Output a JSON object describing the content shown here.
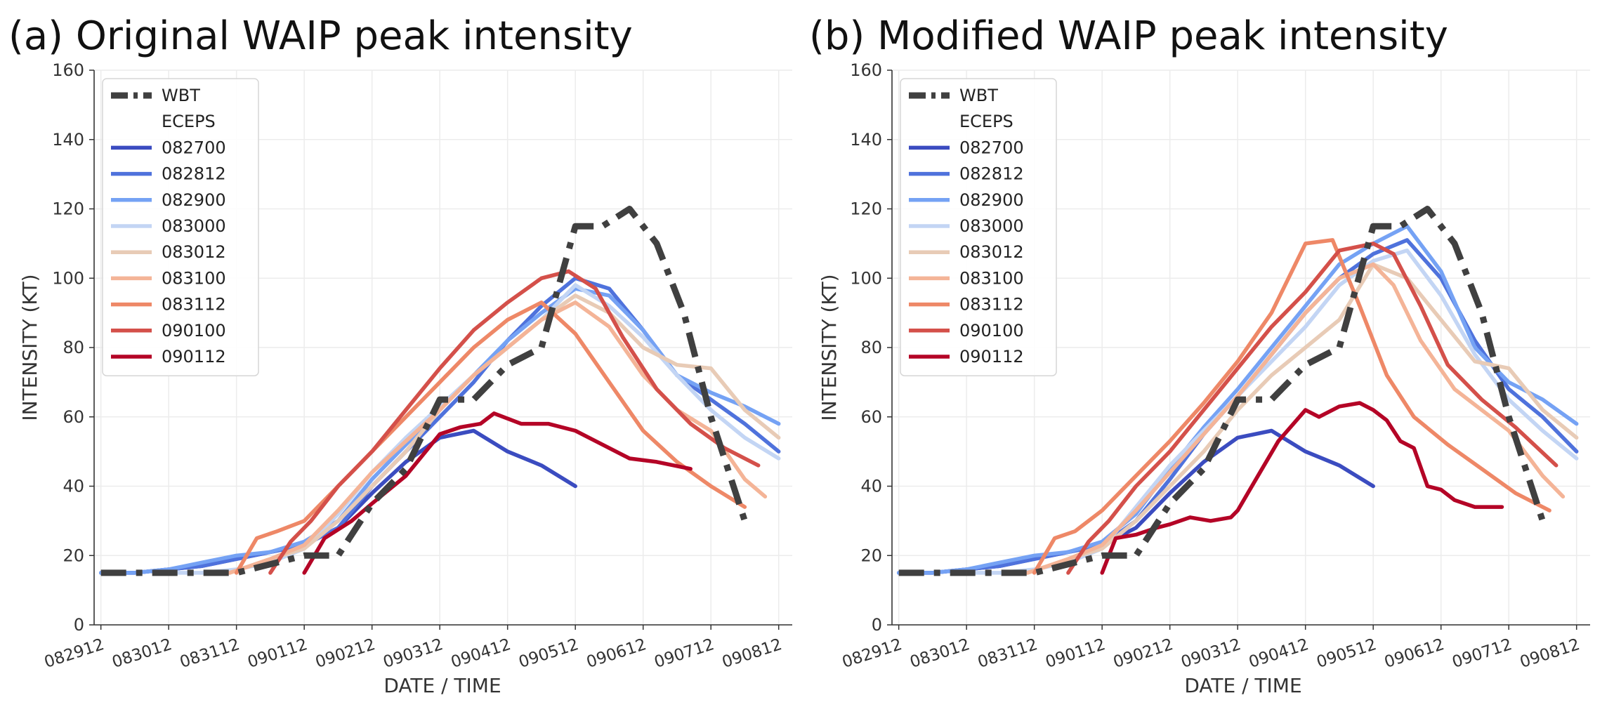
{
  "chart_data": [
    {
      "type": "line",
      "title": "(a) Original WAIP peak intensity",
      "xlabel": "DATE / TIME",
      "ylabel": "INTENSITY (KT)",
      "ylim": [
        0,
        160
      ],
      "yticks": [
        0,
        20,
        40,
        60,
        80,
        100,
        120,
        140,
        160
      ],
      "xlim": [
        -0.1,
        10.2
      ],
      "xticks": [
        "082912",
        "083012",
        "083112",
        "090112",
        "090212",
        "090312",
        "090412",
        "090512",
        "090612",
        "090712",
        "090812"
      ],
      "grid": true,
      "legend": {
        "location": "top-left",
        "header": "ECEPS"
      },
      "series": [
        {
          "name": "WBT",
          "color": "#404040",
          "style": "dashdot",
          "x": [
            0,
            1,
            1.5,
            2,
            3,
            3.5,
            4,
            4.5,
            5,
            5.5,
            6,
            6.5,
            7,
            7.4,
            7.8,
            8.2,
            8.6,
            9,
            9.5
          ],
          "y": [
            15,
            15,
            15,
            15,
            20,
            20,
            35,
            45,
            65,
            65,
            75,
            80,
            115,
            115,
            120,
            110,
            90,
            60,
            30
          ]
        },
        {
          "name": "082700",
          "color": "#3b4cc0",
          "x": [
            0,
            0.5,
            1,
            1.5,
            2,
            2.5,
            3,
            3.5,
            4,
            4.5,
            5,
            5.5,
            6,
            6.5,
            7
          ],
          "y": [
            15,
            15,
            16,
            17,
            19,
            21,
            23,
            28,
            38,
            47,
            54,
            56,
            50,
            46,
            40
          ]
        },
        {
          "name": "082812",
          "color": "#4f72dc",
          "x": [
            0,
            0.5,
            1,
            1.5,
            2,
            2.5,
            3,
            3.5,
            4,
            4.5,
            5,
            5.5,
            6,
            6.5,
            7,
            7.5,
            8,
            8.5,
            9,
            9.5,
            10
          ],
          "y": [
            15,
            15,
            16,
            17,
            19,
            21,
            23,
            28,
            40,
            50,
            60,
            70,
            82,
            92,
            100,
            97,
            85,
            72,
            65,
            58,
            50
          ]
        },
        {
          "name": "082900",
          "color": "#75a2f4",
          "x": [
            0,
            0.5,
            1,
            1.5,
            2,
            2.5,
            3,
            3.5,
            4,
            4.5,
            5,
            5.5,
            6,
            6.5,
            7,
            7.5,
            8,
            8.5,
            9,
            9.5,
            10
          ],
          "y": [
            15,
            15,
            16,
            18,
            20,
            21,
            24,
            30,
            42,
            52,
            62,
            72,
            82,
            90,
            97,
            95,
            85,
            72,
            67,
            63,
            58
          ]
        },
        {
          "name": "083000",
          "color": "#c3d5f4",
          "x": [
            0.9,
            1.5,
            2,
            2.5,
            3,
            3.5,
            4,
            4.5,
            5,
            5.5,
            6,
            6.5,
            7,
            7.5,
            8,
            8.5,
            9,
            9.5,
            10
          ],
          "y": [
            15,
            15,
            16,
            18,
            22,
            32,
            44,
            54,
            63,
            72,
            80,
            88,
            98,
            92,
            83,
            72,
            62,
            54,
            48
          ]
        },
        {
          "name": "083012",
          "color": "#e8cbb6",
          "x": [
            1.9,
            2.2,
            2.5,
            3,
            3.5,
            4,
            4.5,
            5,
            5.5,
            6,
            6.5,
            7,
            7.5,
            8,
            8.5,
            9,
            9.5,
            10
          ],
          "y": [
            15,
            17,
            19,
            22,
            30,
            40,
            50,
            62,
            72,
            80,
            88,
            95,
            90,
            80,
            75,
            74,
            62,
            54
          ]
        },
        {
          "name": "083100",
          "color": "#f4b497",
          "x": [
            1.9,
            2.2,
            2.5,
            3,
            3.5,
            4,
            4.5,
            5,
            5.5,
            6,
            6.5,
            7,
            7.5,
            8,
            8.5,
            9,
            9.5,
            9.8
          ],
          "y": [
            15,
            17,
            19,
            23,
            33,
            44,
            53,
            62,
            72,
            80,
            88,
            93,
            86,
            72,
            62,
            56,
            42,
            37
          ]
        },
        {
          "name": "083112",
          "color": "#ee8867",
          "x": [
            2,
            2.3,
            2.6,
            3,
            3.5,
            4,
            4.5,
            5,
            5.5,
            6,
            6.5,
            7,
            7.5,
            8,
            8.5,
            9,
            9.5
          ],
          "y": [
            15,
            25,
            27,
            30,
            40,
            50,
            60,
            70,
            80,
            88,
            93,
            84,
            70,
            56,
            47,
            40,
            34
          ]
        },
        {
          "name": "090100",
          "color": "#d4504a",
          "x": [
            2.5,
            2.8,
            3.1,
            3.5,
            4,
            4.5,
            5,
            5.5,
            6,
            6.5,
            6.9,
            7.3,
            7.7,
            8.2,
            8.7,
            9.2,
            9.7
          ],
          "y": [
            15,
            24,
            30,
            40,
            50,
            62,
            74,
            85,
            93,
            100,
            102,
            97,
            83,
            68,
            58,
            51,
            46
          ]
        },
        {
          "name": "090112",
          "color": "#b40426",
          "x": [
            3,
            3.3,
            3.7,
            4,
            4.5,
            5,
            5.3,
            5.6,
            5.8,
            6.2,
            6.6,
            7,
            7.3,
            7.8,
            8.2,
            8.7
          ],
          "y": [
            15,
            25,
            30,
            35,
            43,
            55,
            57,
            58,
            61,
            58,
            58,
            56,
            53,
            48,
            47,
            45
          ]
        }
      ]
    },
    {
      "type": "line",
      "title": "(b) Modified WAIP peak intensity",
      "xlabel": "DATE / TIME",
      "ylabel": "INTENSITY (KT)",
      "ylim": [
        0,
        160
      ],
      "yticks": [
        0,
        20,
        40,
        60,
        80,
        100,
        120,
        140,
        160
      ],
      "xlim": [
        -0.1,
        10.2
      ],
      "xticks": [
        "082912",
        "083012",
        "083112",
        "090112",
        "090212",
        "090312",
        "090412",
        "090512",
        "090612",
        "090712",
        "090812"
      ],
      "grid": true,
      "legend": {
        "location": "top-left",
        "header": "ECEPS"
      },
      "series": [
        {
          "name": "WBT",
          "color": "#404040",
          "style": "dashdot",
          "x": [
            0,
            1,
            1.5,
            2,
            3,
            3.5,
            4,
            4.5,
            5,
            5.5,
            6,
            6.5,
            7,
            7.4,
            7.8,
            8.2,
            8.6,
            9,
            9.5
          ],
          "y": [
            15,
            15,
            15,
            15,
            20,
            20,
            35,
            45,
            65,
            65,
            75,
            80,
            115,
            115,
            120,
            110,
            90,
            60,
            30
          ]
        },
        {
          "name": "082700",
          "color": "#3b4cc0",
          "x": [
            0,
            0.5,
            1,
            1.5,
            2,
            2.5,
            3,
            3.5,
            4,
            4.5,
            5,
            5.5,
            6,
            6.5,
            7
          ],
          "y": [
            15,
            15,
            16,
            17,
            19,
            21,
            23,
            28,
            38,
            47,
            54,
            56,
            50,
            46,
            40
          ]
        },
        {
          "name": "082812",
          "color": "#4f72dc",
          "x": [
            0,
            0.5,
            1,
            1.5,
            2,
            2.5,
            3,
            3.5,
            4,
            4.5,
            5,
            5.5,
            6,
            6.5,
            7,
            7.5,
            8,
            8.5,
            9,
            9.5,
            10
          ],
          "y": [
            15,
            15,
            16,
            17,
            19,
            21,
            23,
            30,
            42,
            55,
            66,
            78,
            90,
            100,
            107,
            111,
            100,
            82,
            68,
            60,
            50
          ]
        },
        {
          "name": "082900",
          "color": "#75a2f4",
          "x": [
            0,
            0.5,
            1,
            1.5,
            2,
            2.5,
            3,
            3.5,
            4,
            4.5,
            5,
            5.5,
            6,
            6.5,
            7,
            7.5,
            8,
            8.5,
            9,
            9.5,
            10
          ],
          "y": [
            15,
            15,
            16,
            18,
            20,
            21,
            24,
            32,
            45,
            57,
            68,
            80,
            92,
            104,
            110,
            115,
            102,
            80,
            70,
            65,
            58
          ]
        },
        {
          "name": "083000",
          "color": "#c3d5f4",
          "x": [
            0.9,
            1.5,
            2,
            2.5,
            3,
            3.5,
            4,
            4.5,
            5,
            5.5,
            6,
            6.5,
            7,
            7.5,
            8,
            8.5,
            9,
            9.5,
            10
          ],
          "y": [
            15,
            15,
            16,
            18,
            22,
            34,
            46,
            56,
            66,
            76,
            86,
            98,
            105,
            108,
            95,
            78,
            65,
            56,
            48
          ]
        },
        {
          "name": "083012",
          "color": "#e8cbb6",
          "x": [
            1.9,
            2.2,
            2.5,
            3,
            3.5,
            4,
            4.5,
            5,
            5.5,
            6,
            6.5,
            7,
            7.5,
            8,
            8.5,
            9,
            9.5,
            10
          ],
          "y": [
            15,
            17,
            19,
            22,
            30,
            40,
            50,
            62,
            72,
            80,
            88,
            104,
            100,
            88,
            76,
            74,
            62,
            54
          ]
        },
        {
          "name": "083100",
          "color": "#f4b497",
          "x": [
            1.9,
            2.2,
            2.5,
            3,
            3.5,
            4,
            4.5,
            5,
            5.5,
            6,
            6.5,
            7,
            7.3,
            7.7,
            8.2,
            8.6,
            9,
            9.5,
            9.8
          ],
          "y": [
            15,
            17,
            19,
            23,
            33,
            44,
            55,
            66,
            78,
            90,
            100,
            104,
            98,
            82,
            68,
            62,
            56,
            43,
            37
          ]
        },
        {
          "name": "083112",
          "color": "#ee8867",
          "x": [
            2,
            2.3,
            2.6,
            3,
            3.5,
            4,
            4.5,
            5,
            5.5,
            6,
            6.4,
            6.8,
            7.2,
            7.6,
            8.1,
            8.6,
            9.1,
            9.6
          ],
          "y": [
            15,
            25,
            27,
            33,
            43,
            53,
            64,
            76,
            90,
            110,
            111,
            92,
            72,
            60,
            52,
            45,
            38,
            33
          ]
        },
        {
          "name": "090100",
          "color": "#d4504a",
          "x": [
            2.5,
            2.8,
            3.1,
            3.5,
            4,
            4.5,
            5,
            5.5,
            6,
            6.5,
            7,
            7.3,
            7.7,
            8.1,
            8.6,
            9.1,
            9.7
          ],
          "y": [
            15,
            24,
            30,
            40,
            50,
            62,
            74,
            86,
            96,
            108,
            110,
            107,
            92,
            75,
            65,
            57,
            46
          ]
        },
        {
          "name": "090112",
          "color": "#b40426",
          "x": [
            3,
            3.2,
            3.5,
            3.8,
            4,
            4.3,
            4.6,
            4.9,
            5,
            5.3,
            5.6,
            6,
            6.2,
            6.5,
            6.8,
            7,
            7.2,
            7.4,
            7.6,
            7.8,
            8,
            8.2,
            8.5,
            8.9
          ],
          "y": [
            15,
            25,
            26,
            28,
            29,
            31,
            30,
            31,
            33,
            43,
            53,
            62,
            60,
            63,
            64,
            62,
            59,
            53,
            51,
            40,
            39,
            36,
            34,
            34
          ]
        }
      ]
    }
  ]
}
